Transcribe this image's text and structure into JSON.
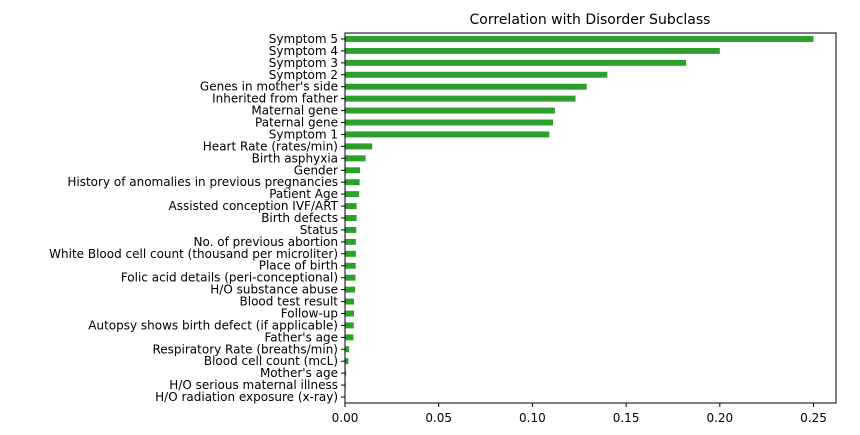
{
  "chart_data": {
    "type": "bar",
    "orientation": "horizontal",
    "title": "Correlation with Disorder Subclass",
    "xlabel": "",
    "ylabel": "",
    "xlim": [
      0,
      0.262
    ],
    "xticks": [
      "0.00",
      "0.05",
      "0.10",
      "0.15",
      "0.20",
      "0.25"
    ],
    "xtick_values": [
      0,
      0.05,
      0.1,
      0.15,
      0.2,
      0.25
    ],
    "bar_color": "#2ca02c",
    "grid": false,
    "legend": "none",
    "categories": [
      "Symptom 5",
      "Symptom 4",
      "Symptom 3",
      "Symptom 2",
      "Genes in mother's side",
      "Inherited from father",
      "Maternal gene",
      "Paternal gene",
      "Symptom 1",
      "Heart Rate (rates/min)",
      "Birth asphyxia",
      "Gender",
      "History of anomalies in previous pregnancies",
      "Patient Age",
      "Assisted conception IVF/ART",
      "Birth defects",
      "Status",
      "No. of previous abortion",
      "White Blood cell count (thousand per microliter)",
      "Place of birth",
      "Folic acid details (peri-conceptional)",
      "H/O substance abuse",
      "Blood test result",
      "Follow-up",
      "Autopsy shows birth defect (if applicable)",
      "Father's age",
      "Respiratory Rate (breaths/min)",
      "Blood cell count (mcL)",
      "Mother's age",
      "H/O serious maternal illness",
      "H/O radiation exposure (x-ray)"
    ],
    "values": [
      0.25,
      0.2,
      0.182,
      0.14,
      0.129,
      0.123,
      0.112,
      0.111,
      0.109,
      0.0145,
      0.011,
      0.008,
      0.0078,
      0.0075,
      0.0062,
      0.0062,
      0.006,
      0.0058,
      0.0058,
      0.0057,
      0.0056,
      0.0054,
      0.0048,
      0.0048,
      0.0047,
      0.0045,
      0.0022,
      0.0018,
      0.0006,
      0.0004,
      0.0002
    ]
  }
}
